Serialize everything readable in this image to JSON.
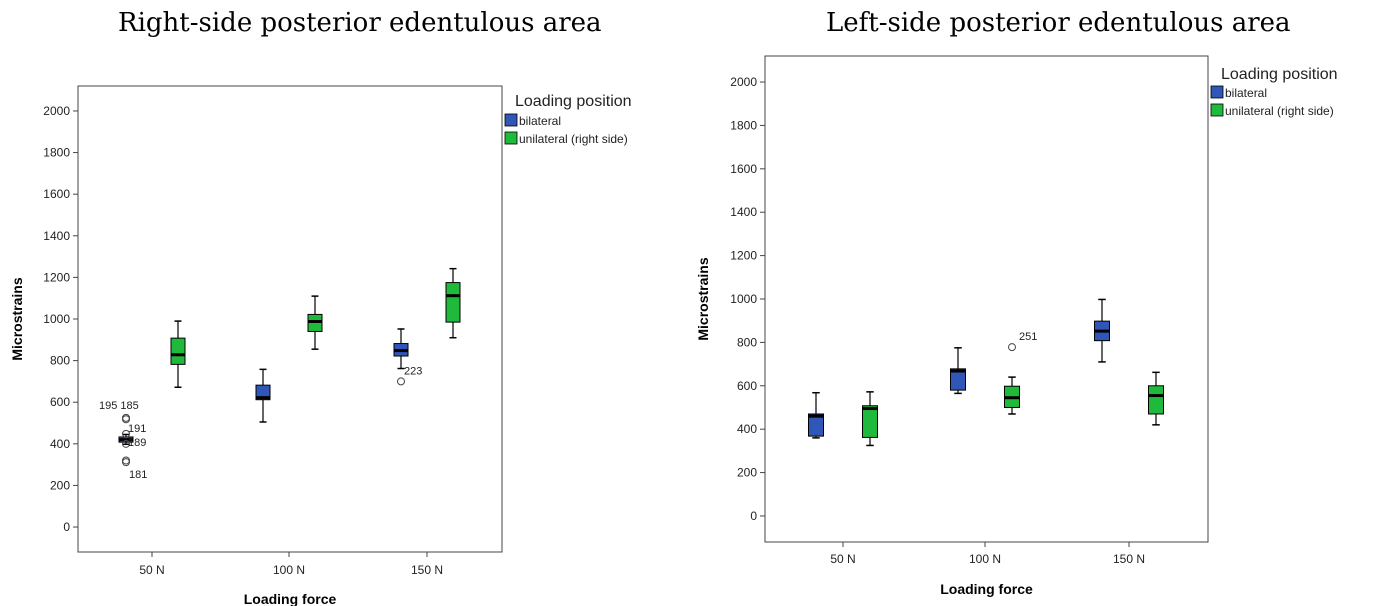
{
  "titles": {
    "right": "Right-side posterior edentulous area",
    "left": "Left-side posterior edentulous area"
  },
  "colors": {
    "bilateral": "#3057b8",
    "unilateral": "#1fba3c"
  },
  "chart_data": [
    {
      "type": "boxplot",
      "title": "Right-side posterior edentulous area",
      "xlabel": "Loading force",
      "ylabel": "Microstrains",
      "categories": [
        "50 N",
        "100 N",
        "150 N"
      ],
      "ylim": [
        -120,
        2120
      ],
      "yticks": [
        0,
        200,
        400,
        600,
        800,
        1000,
        1200,
        1400,
        1600,
        1800,
        2000
      ],
      "legend": {
        "title": "Loading position",
        "position": "right",
        "entries": [
          "bilateral",
          "unilateral  (right side)"
        ]
      },
      "series": [
        {
          "name": "bilateral",
          "boxes": [
            {
              "min": 398,
              "q1": 408,
              "median": 420,
              "q3": 433,
              "max": 445
            },
            {
              "min": 505,
              "q1": 612,
              "median": 622,
              "q3": 682,
              "max": 758
            },
            {
              "min": 762,
              "q1": 822,
              "median": 848,
              "q3": 882,
              "max": 952
            }
          ]
        },
        {
          "name": "unilateral  (right side)",
          "boxes": [
            {
              "min": 672,
              "q1": 782,
              "median": 828,
              "q3": 908,
              "max": 990
            },
            {
              "min": 855,
              "q1": 940,
              "median": 988,
              "q3": 1022,
              "max": 1110
            },
            {
              "min": 910,
              "q1": 985,
              "median": 1112,
              "q3": 1175,
              "max": 1242
            }
          ]
        }
      ],
      "outliers": [
        {
          "category": "50 N",
          "series": "bilateral",
          "value": 525,
          "label": "195 185"
        },
        {
          "category": "50 N",
          "series": "bilateral",
          "value": 518,
          "label": ""
        },
        {
          "category": "50 N",
          "series": "bilateral",
          "value": 448,
          "label": "191"
        },
        {
          "category": "50 N",
          "series": "bilateral",
          "value": 400,
          "label": "189"
        },
        {
          "category": "50 N",
          "series": "bilateral",
          "value": 320,
          "label": ""
        },
        {
          "category": "50 N",
          "series": "bilateral",
          "value": 312,
          "label": "181"
        },
        {
          "category": "150 N",
          "series": "bilateral",
          "value": 700,
          "label": "223"
        }
      ]
    },
    {
      "type": "boxplot",
      "title": "Left-side posterior edentulous area",
      "xlabel": "Loading force",
      "ylabel": "Microstrains",
      "categories": [
        "50 N",
        "100 N",
        "150 N"
      ],
      "ylim": [
        -120,
        2120
      ],
      "yticks": [
        0,
        200,
        400,
        600,
        800,
        1000,
        1200,
        1400,
        1600,
        1800,
        2000
      ],
      "legend": {
        "title": "Loading position",
        "position": "right",
        "entries": [
          "bilateral",
          "unilateral  (right side)"
        ]
      },
      "series": [
        {
          "name": "bilateral",
          "boxes": [
            {
              "min": 360,
              "q1": 368,
              "median": 460,
              "q3": 470,
              "max": 568
            },
            {
              "min": 565,
              "q1": 580,
              "median": 668,
              "q3": 678,
              "max": 775
            },
            {
              "min": 710,
              "q1": 808,
              "median": 852,
              "q3": 898,
              "max": 998
            }
          ]
        },
        {
          "name": "unilateral  (right side)",
          "boxes": [
            {
              "min": 325,
              "q1": 362,
              "median": 495,
              "q3": 508,
              "max": 572
            },
            {
              "min": 470,
              "q1": 500,
              "median": 545,
              "q3": 598,
              "max": 640
            },
            {
              "min": 420,
              "q1": 470,
              "median": 555,
              "q3": 600,
              "max": 662
            }
          ]
        }
      ],
      "outliers": [
        {
          "category": "100 N",
          "series": "unilateral  (right side)",
          "value": 778,
          "label": "251"
        }
      ]
    }
  ]
}
